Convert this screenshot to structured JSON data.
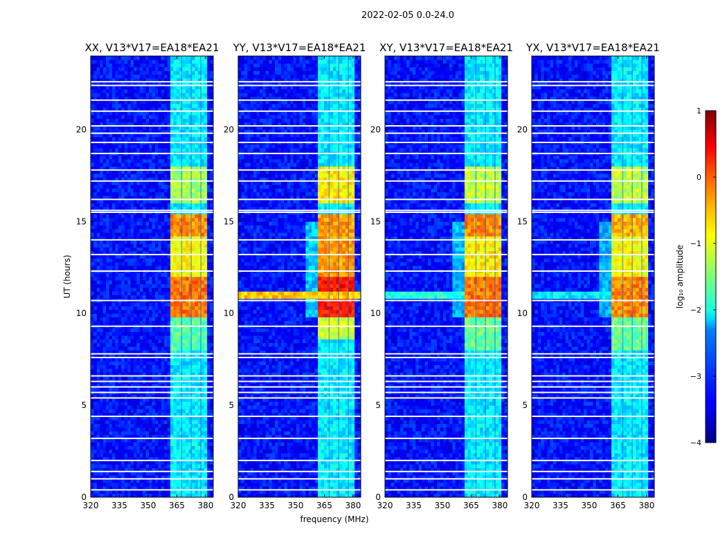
{
  "chart_data": {
    "type": "heatmap",
    "title": "2022-02-05 0.0-24.0",
    "xlabel": "frequency (MHz)",
    "ylabel": "UT (hours)",
    "xlim": [
      320,
      384
    ],
    "ylim": [
      0,
      24
    ],
    "xticks": [
      320,
      335,
      350,
      365,
      380
    ],
    "yticks": [
      0,
      5,
      10,
      15,
      20
    ],
    "colorbar": {
      "label": "log₁₀ amplitude",
      "range": [
        -4,
        1
      ],
      "ticks": [
        1,
        0,
        -1,
        -2,
        -3,
        -4
      ],
      "tick_labels": [
        "1",
        "0",
        "−1",
        "−2",
        "−3",
        "−4"
      ],
      "colormap": "jet"
    },
    "background_log_amplitude": -3.3,
    "flagged_hours": [
      0.4,
      1.0,
      1.4,
      2.0,
      3.2,
      4.4,
      5.4,
      5.7,
      6.0,
      6.3,
      6.6,
      7.6,
      7.8,
      9.3,
      10.7,
      12.3,
      13.2,
      14.0,
      15.5,
      15.6,
      16.2,
      17.2,
      17.8,
      18.7,
      19.3,
      19.8,
      20.2,
      21.0,
      21.6,
      22.4,
      22.6
    ],
    "channel_gaps_mhz": [
      367.5,
      372.5,
      377.5
    ],
    "panels": [
      {
        "title": "XX, V13*V17=EA18*EA21",
        "regions": [
          {
            "freq": [
              362,
              381
            ],
            "time": [
              0,
              24
            ],
            "log_amp": -2.2
          },
          {
            "freq": [
              362,
              381
            ],
            "time": [
              8,
              9.8
            ],
            "log_amp": -1.7
          },
          {
            "freq": [
              362,
              381
            ],
            "time": [
              16,
              18
            ],
            "log_amp": -1.3
          },
          {
            "freq": [
              362,
              381
            ],
            "time": [
              12,
              15.3
            ],
            "log_amp": -0.9
          },
          {
            "freq": [
              362,
              381
            ],
            "time": [
              14.2,
              15.3
            ],
            "log_amp": -0.3
          },
          {
            "freq": [
              362,
              381
            ],
            "time": [
              9.8,
              11.9
            ],
            "log_amp": -0.2
          }
        ]
      },
      {
        "title": "YY, V13*V17=EA18*EA21",
        "regions": [
          {
            "freq": [
              361,
              380
            ],
            "time": [
              0,
              24
            ],
            "log_amp": -2.2
          },
          {
            "freq": [
              355,
              361
            ],
            "time": [
              9.8,
              15
            ],
            "log_amp": -2.4
          },
          {
            "freq": [
              361,
              380
            ],
            "time": [
              8.6,
              9.8
            ],
            "log_amp": -1.1
          },
          {
            "freq": [
              361,
              380
            ],
            "time": [
              16,
              18
            ],
            "log_amp": -0.8
          },
          {
            "freq": [
              361,
              380
            ],
            "time": [
              12,
              15.4
            ],
            "log_amp": -0.4
          },
          {
            "freq": [
              361,
              380
            ],
            "time": [
              9.8,
              11.9
            ],
            "log_amp": 0.3
          },
          {
            "freq": [
              320,
              384
            ],
            "time": [
              10.9,
              11.2
            ],
            "log_amp": -0.6
          }
        ]
      },
      {
        "title": "XY, V13*V17=EA18*EA21",
        "regions": [
          {
            "freq": [
              361,
              380
            ],
            "time": [
              0,
              24
            ],
            "log_amp": -2.2
          },
          {
            "freq": [
              356,
              361
            ],
            "time": [
              9.8,
              15
            ],
            "log_amp": -2.5
          },
          {
            "freq": [
              361,
              380
            ],
            "time": [
              8,
              9.8
            ],
            "log_amp": -1.6
          },
          {
            "freq": [
              361,
              380
            ],
            "time": [
              16,
              18
            ],
            "log_amp": -1.2
          },
          {
            "freq": [
              361,
              380
            ],
            "time": [
              12,
              15.3
            ],
            "log_amp": -0.8
          },
          {
            "freq": [
              361,
              380
            ],
            "time": [
              14.2,
              15.3
            ],
            "log_amp": -0.3
          },
          {
            "freq": [
              361,
              380
            ],
            "time": [
              9.8,
              11.9
            ],
            "log_amp": -0.2
          },
          {
            "freq": [
              320,
              361
            ],
            "time": [
              10.9,
              11.2
            ],
            "log_amp": -2.0
          }
        ]
      },
      {
        "title": "YX, V13*V17=EA18*EA21",
        "regions": [
          {
            "freq": [
              361,
              380
            ],
            "time": [
              0,
              24
            ],
            "log_amp": -2.2
          },
          {
            "freq": [
              356,
              361
            ],
            "time": [
              9.8,
              15
            ],
            "log_amp": -2.5
          },
          {
            "freq": [
              361,
              380
            ],
            "time": [
              8,
              9.8
            ],
            "log_amp": -1.6
          },
          {
            "freq": [
              361,
              380
            ],
            "time": [
              16,
              18
            ],
            "log_amp": -1.2
          },
          {
            "freq": [
              361,
              380
            ],
            "time": [
              12,
              15.3
            ],
            "log_amp": -0.9
          },
          {
            "freq": [
              361,
              380
            ],
            "time": [
              14.2,
              15.3
            ],
            "log_amp": -0.5
          },
          {
            "freq": [
              361,
              380
            ],
            "time": [
              9.8,
              11.9
            ],
            "log_amp": -0.3
          },
          {
            "freq": [
              320,
              361
            ],
            "time": [
              10.9,
              11.2
            ],
            "log_amp": -2.2
          }
        ]
      }
    ]
  }
}
